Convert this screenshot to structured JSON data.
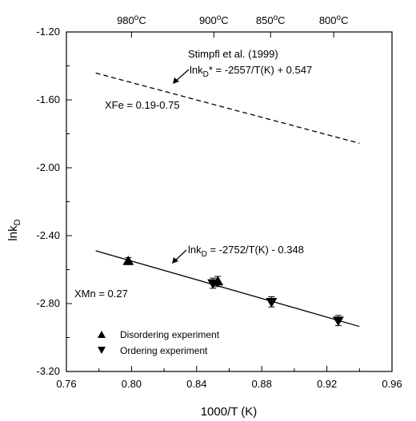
{
  "chart_data": {
    "type": "scatter",
    "xlabel": "1000/T (K)",
    "ylabel": "lnk",
    "ylabel_sub": "D",
    "xlim": [
      0.76,
      0.96
    ],
    "ylim": [
      -3.2,
      -1.2
    ],
    "x_ticks": [
      "0.76",
      "0.80",
      "0.84",
      "0.88",
      "0.92",
      "0.96"
    ],
    "y_ticks": [
      "-1.20",
      "-1.60",
      "-2.00",
      "-2.40",
      "-2.80",
      "-3.20"
    ],
    "top_axis_ticks": [
      {
        "x": 0.8,
        "label": "980",
        "unit": "oC"
      },
      {
        "x": 0.8506,
        "label": "900",
        "unit": "oC"
      },
      {
        "x": 0.8854,
        "label": "850",
        "unit": "oC"
      },
      {
        "x": 0.9242,
        "label": "800",
        "unit": "oC"
      }
    ],
    "series": [
      {
        "name": "Disordering experiment",
        "marker": "triangle-up",
        "points": [
          {
            "x": 0.798,
            "y": -2.55,
            "err": 0.02
          },
          {
            "x": 0.853,
            "y": -2.67,
            "err": 0.03
          }
        ]
      },
      {
        "name": "Ordering experiment",
        "marker": "triangle-down",
        "points": [
          {
            "x": 0.85,
            "y": -2.68,
            "err": 0.03
          },
          {
            "x": 0.886,
            "y": -2.79,
            "err": 0.03
          },
          {
            "x": 0.927,
            "y": -2.9,
            "err": 0.03
          }
        ]
      }
    ],
    "lines": [
      {
        "name": "fit",
        "style": "solid",
        "x": [
          0.778,
          0.94
        ],
        "y": [
          -2.489,
          -2.935
        ]
      },
      {
        "name": "stimpfl",
        "style": "dashed",
        "x": [
          0.778,
          0.94
        ],
        "y": [
          -1.442,
          -1.856
        ]
      }
    ],
    "annotations": {
      "stimpfl_ref": "Stimpfl et al. (1999)",
      "stimpfl_eq_pre": "lnk",
      "stimpfl_eq_sub": "D",
      "stimpfl_eq_post": "* = -2557/T(K) + 0.547",
      "xfe": "XFe = 0.19-0.75",
      "fit_eq_pre": "lnk",
      "fit_eq_sub": "D",
      "fit_eq_post": " = -2752/T(K) - 0.348",
      "xmn": "XMn = 0.27"
    },
    "legend_labels": [
      "Disordering experiment",
      "Ordering experiment"
    ]
  }
}
